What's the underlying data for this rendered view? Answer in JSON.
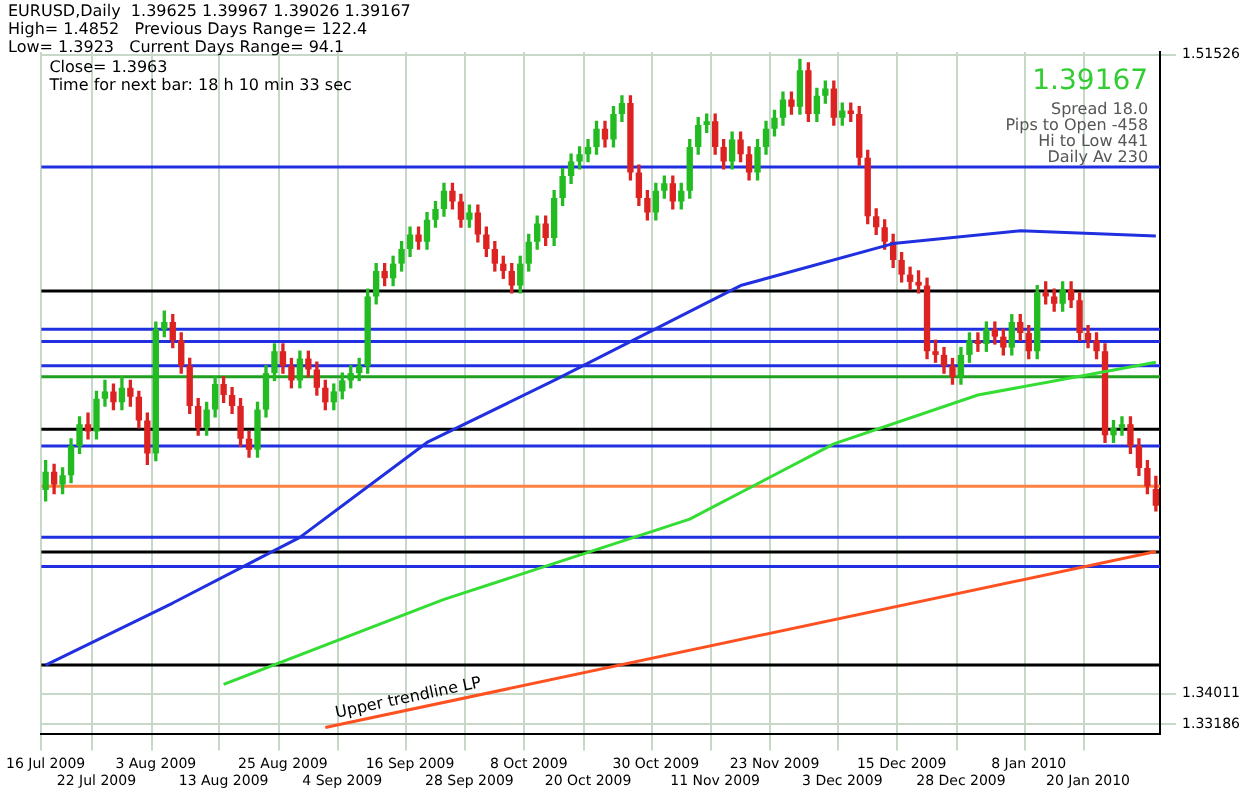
{
  "chart_data": {
    "type": "candlestick",
    "title": "EURUSD,Daily  1.39625 1.39967 1.39026 1.39167",
    "annotations": [
      "High= 1.4852   Previous Days Range= 122.4",
      "Low= 1.3923   Current Days Range= 94.1",
      "Close= 1.3963",
      "Time for next bar: 18 h 10 min 33 sec",
      "1.39167",
      "Spread 18.0",
      "Pips to Open -458",
      "Hi to Low 441",
      "Daily Av 230"
    ],
    "categories": [
      "16 Jul 2009",
      null,
      null,
      null,
      null,
      null,
      "22 Jul 2009",
      null,
      null,
      null,
      null,
      null,
      null,
      "3 Aug 2009",
      null,
      null,
      null,
      null,
      null,
      null,
      null,
      "13 Aug 2009",
      null,
      null,
      null,
      null,
      null,
      null,
      "25 Aug 2009",
      null,
      null,
      null,
      null,
      null,
      null,
      "4 Sep 2009",
      null,
      null,
      null,
      null,
      null,
      null,
      null,
      "16 Sep 2009",
      null,
      null,
      null,
      null,
      null,
      null,
      "28 Sep 2009",
      null,
      null,
      null,
      null,
      null,
      null,
      "8 Oct 2009",
      null,
      null,
      null,
      null,
      null,
      null,
      "20 Oct 2009",
      null,
      null,
      null,
      null,
      null,
      null,
      null,
      "30 Oct 2009",
      null,
      null,
      null,
      null,
      null,
      null,
      "11 Nov 2009",
      null,
      null,
      null,
      null,
      null,
      null,
      "23 Nov 2009",
      null,
      null,
      null,
      null,
      null,
      null,
      null,
      "3 Dec 2009",
      null,
      null,
      null,
      null,
      null,
      null,
      "15 Dec 2009",
      null,
      null,
      null,
      null,
      null,
      null,
      "28 Dec 2009",
      null,
      null,
      null,
      null,
      null,
      null,
      null,
      "8 Jan 2010",
      null,
      null,
      null,
      null,
      null,
      null,
      "20 Jan 2010",
      null,
      null,
      null,
      null,
      null,
      null,
      null,
      null
    ],
    "ohlc": [
      [
        1.396,
        1.404,
        1.393,
        1.401
      ],
      [
        1.401,
        1.403,
        1.395,
        1.3975
      ],
      [
        1.3975,
        1.402,
        1.395,
        1.4
      ],
      [
        1.4,
        1.41,
        1.398,
        1.408
      ],
      [
        1.408,
        1.416,
        1.406,
        1.414
      ],
      [
        1.414,
        1.417,
        1.41,
        1.412
      ],
      [
        1.412,
        1.423,
        1.41,
        1.421
      ],
      [
        1.421,
        1.426,
        1.419,
        1.423
      ],
      [
        1.423,
        1.425,
        1.418,
        1.42
      ],
      [
        1.42,
        1.427,
        1.418,
        1.424
      ],
      [
        1.424,
        1.426,
        1.419,
        1.4215
      ],
      [
        1.4215,
        1.423,
        1.413,
        1.415
      ],
      [
        1.415,
        1.417,
        1.403,
        1.406
      ],
      [
        1.406,
        1.442,
        1.404,
        1.44
      ],
      [
        1.44,
        1.445,
        1.438,
        1.442
      ],
      [
        1.442,
        1.444,
        1.435,
        1.437
      ],
      [
        1.437,
        1.439,
        1.428,
        1.43
      ],
      [
        1.43,
        1.432,
        1.417,
        1.419
      ],
      [
        1.419,
        1.421,
        1.411,
        1.413
      ],
      [
        1.413,
        1.42,
        1.411,
        1.418
      ],
      [
        1.418,
        1.427,
        1.416,
        1.425
      ],
      [
        1.425,
        1.427,
        1.42,
        1.422
      ],
      [
        1.422,
        1.424,
        1.417,
        1.419
      ],
      [
        1.419,
        1.421,
        1.408,
        1.41
      ],
      [
        1.41,
        1.412,
        1.405,
        1.407
      ],
      [
        1.407,
        1.42,
        1.405,
        1.418
      ],
      [
        1.418,
        1.43,
        1.416,
        1.428
      ],
      [
        1.428,
        1.436,
        1.426,
        1.434
      ],
      [
        1.434,
        1.436,
        1.428,
        1.43
      ],
      [
        1.43,
        1.432,
        1.424,
        1.426
      ],
      [
        1.426,
        1.434,
        1.424,
        1.432
      ],
      [
        1.432,
        1.434,
        1.427,
        1.429
      ],
      [
        1.429,
        1.431,
        1.422,
        1.424
      ],
      [
        1.424,
        1.426,
        1.418,
        1.42
      ],
      [
        1.42,
        1.425,
        1.418,
        1.423
      ],
      [
        1.423,
        1.428,
        1.421,
        1.426
      ],
      [
        1.426,
        1.43,
        1.424,
        1.428
      ],
      [
        1.428,
        1.432,
        1.426,
        1.43
      ],
      [
        1.43,
        1.451,
        1.428,
        1.449
      ],
      [
        1.449,
        1.458,
        1.447,
        1.456
      ],
      [
        1.456,
        1.458,
        1.452,
        1.454
      ],
      [
        1.454,
        1.46,
        1.452,
        1.458
      ],
      [
        1.458,
        1.464,
        1.456,
        1.462
      ],
      [
        1.462,
        1.468,
        1.46,
        1.466
      ],
      [
        1.466,
        1.468,
        1.462,
        1.464
      ],
      [
        1.464,
        1.472,
        1.462,
        1.47
      ],
      [
        1.47,
        1.475,
        1.468,
        1.473
      ],
      [
        1.473,
        1.48,
        1.471,
        1.478
      ],
      [
        1.478,
        1.48,
        1.473,
        1.475
      ],
      [
        1.475,
        1.477,
        1.468,
        1.47
      ],
      [
        1.47,
        1.474,
        1.468,
        1.472
      ],
      [
        1.472,
        1.474,
        1.464,
        1.466
      ],
      [
        1.466,
        1.468,
        1.46,
        1.462
      ],
      [
        1.462,
        1.464,
        1.456,
        1.458
      ],
      [
        1.458,
        1.46,
        1.454,
        1.456
      ],
      [
        1.456,
        1.458,
        1.45,
        1.452
      ],
      [
        1.452,
        1.46,
        1.45,
        1.458
      ],
      [
        1.458,
        1.466,
        1.456,
        1.464
      ],
      [
        1.464,
        1.471,
        1.462,
        1.469
      ],
      [
        1.469,
        1.471,
        1.463,
        1.465
      ],
      [
        1.465,
        1.478,
        1.463,
        1.476
      ],
      [
        1.476,
        1.484,
        1.474,
        1.482
      ],
      [
        1.482,
        1.488,
        1.48,
        1.486
      ],
      [
        1.486,
        1.49,
        1.484,
        1.488
      ],
      [
        1.488,
        1.492,
        1.486,
        1.49
      ],
      [
        1.49,
        1.497,
        1.488,
        1.495
      ],
      [
        1.495,
        1.497,
        1.49,
        1.492
      ],
      [
        1.492,
        1.501,
        1.49,
        1.499
      ],
      [
        1.499,
        1.504,
        1.497,
        1.502
      ],
      [
        1.502,
        1.504,
        1.481,
        1.483
      ],
      [
        1.483,
        1.485,
        1.474,
        1.476
      ],
      [
        1.476,
        1.478,
        1.47,
        1.472
      ],
      [
        1.472,
        1.48,
        1.47,
        1.478
      ],
      [
        1.478,
        1.482,
        1.476,
        1.48
      ],
      [
        1.48,
        1.482,
        1.473,
        1.475
      ],
      [
        1.475,
        1.48,
        1.473,
        1.478
      ],
      [
        1.478,
        1.492,
        1.476,
        1.49
      ],
      [
        1.49,
        1.498,
        1.488,
        1.496
      ],
      [
        1.496,
        1.499,
        1.494,
        1.497
      ],
      [
        1.497,
        1.499,
        1.488,
        1.49
      ],
      [
        1.49,
        1.492,
        1.484,
        1.486
      ],
      [
        1.486,
        1.494,
        1.484,
        1.492
      ],
      [
        1.492,
        1.494,
        1.486,
        1.488
      ],
      [
        1.488,
        1.49,
        1.481,
        1.483
      ],
      [
        1.483,
        1.492,
        1.481,
        1.49
      ],
      [
        1.49,
        1.497,
        1.488,
        1.495
      ],
      [
        1.495,
        1.5,
        1.493,
        1.498
      ],
      [
        1.498,
        1.505,
        1.496,
        1.503
      ],
      [
        1.503,
        1.505,
        1.499,
        1.501
      ],
      [
        1.501,
        1.514,
        1.499,
        1.511
      ],
      [
        1.511,
        1.513,
        1.497,
        1.499
      ],
      [
        1.499,
        1.506,
        1.497,
        1.504
      ],
      [
        1.504,
        1.508,
        1.502,
        1.506
      ],
      [
        1.506,
        1.508,
        1.496,
        1.498
      ],
      [
        1.498,
        1.502,
        1.496,
        1.5
      ],
      [
        1.5,
        1.502,
        1.497,
        1.499
      ],
      [
        1.499,
        1.501,
        1.485,
        1.487
      ],
      [
        1.487,
        1.489,
        1.469,
        1.471
      ],
      [
        1.471,
        1.473,
        1.466,
        1.468
      ],
      [
        1.468,
        1.47,
        1.462,
        1.464
      ],
      [
        1.464,
        1.466,
        1.457,
        1.459
      ],
      [
        1.459,
        1.461,
        1.453,
        1.455
      ],
      [
        1.455,
        1.457,
        1.451,
        1.453
      ],
      [
        1.453,
        1.456,
        1.45,
        1.452
      ],
      [
        1.452,
        1.454,
        1.432,
        1.434
      ],
      [
        1.434,
        1.437,
        1.431,
        1.433
      ],
      [
        1.433,
        1.435,
        1.428,
        1.43
      ],
      [
        1.43,
        1.432,
        1.425,
        1.427
      ],
      [
        1.427,
        1.435,
        1.425,
        1.433
      ],
      [
        1.433,
        1.439,
        1.431,
        1.437
      ],
      [
        1.437,
        1.439,
        1.434,
        1.436
      ],
      [
        1.436,
        1.442,
        1.434,
        1.44
      ],
      [
        1.44,
        1.442,
        1.436,
        1.438
      ],
      [
        1.438,
        1.44,
        1.433,
        1.435
      ],
      [
        1.435,
        1.444,
        1.433,
        1.442
      ],
      [
        1.442,
        1.444,
        1.437,
        1.439
      ],
      [
        1.439,
        1.441,
        1.432,
        1.434
      ],
      [
        1.434,
        1.452,
        1.432,
        1.45
      ],
      [
        1.45,
        1.453,
        1.447,
        1.449
      ],
      [
        1.449,
        1.451,
        1.445,
        1.447
      ],
      [
        1.447,
        1.453,
        1.445,
        1.451
      ],
      [
        1.451,
        1.453,
        1.446,
        1.448
      ],
      [
        1.448,
        1.45,
        1.437,
        1.439
      ],
      [
        1.439,
        1.441,
        1.435,
        1.437
      ],
      [
        1.437,
        1.439,
        1.432,
        1.434
      ],
      [
        1.434,
        1.436,
        1.409,
        1.411
      ],
      [
        1.411,
        1.415,
        1.409,
        1.413
      ],
      [
        1.413,
        1.416,
        1.411,
        1.414
      ],
      [
        1.414,
        1.416,
        1.406,
        1.408
      ],
      [
        1.408,
        1.41,
        1.4,
        1.402
      ],
      [
        1.402,
        1.404,
        1.395,
        1.397
      ],
      [
        1.39625,
        1.39967,
        1.39026,
        1.39167
      ]
    ],
    "colors": [
      "#22bb22",
      "#dd2222",
      "#22bb22",
      "#22bb22",
      "#22bb22",
      "#dd2222",
      "#22bb22",
      "#22bb22",
      "#dd2222",
      "#22bb22",
      "#dd2222",
      "#dd2222",
      "#dd2222",
      "#22bb22",
      "#22bb22",
      "#dd2222",
      "#dd2222",
      "#dd2222",
      "#dd2222",
      "#22bb22",
      "#22bb22",
      "#dd2222",
      "#dd2222",
      "#dd2222",
      "#dd2222",
      "#22bb22",
      "#22bb22",
      "#22bb22",
      "#dd2222",
      "#dd2222",
      "#22bb22",
      "#dd2222",
      "#dd2222",
      "#dd2222",
      "#22bb22",
      "#22bb22",
      "#22bb22",
      "#22bb22",
      "#22bb22",
      "#22bb22",
      "#dd2222",
      "#22bb22",
      "#22bb22",
      "#22bb22",
      "#dd2222",
      "#22bb22",
      "#22bb22",
      "#22bb22",
      "#dd2222",
      "#dd2222",
      "#22bb22",
      "#dd2222",
      "#dd2222",
      "#dd2222",
      "#dd2222",
      "#dd2222",
      "#22bb22",
      "#22bb22",
      "#22bb22",
      "#dd2222",
      "#22bb22",
      "#22bb22",
      "#22bb22",
      "#22bb22",
      "#22bb22",
      "#22bb22",
      "#dd2222",
      "#22bb22",
      "#22bb22",
      "#dd2222",
      "#dd2222",
      "#dd2222",
      "#22bb22",
      "#22bb22",
      "#dd2222",
      "#22bb22",
      "#22bb22",
      "#22bb22",
      "#22bb22",
      "#dd2222",
      "#dd2222",
      "#22bb22",
      "#dd2222",
      "#dd2222",
      "#22bb22",
      "#22bb22",
      "#22bb22",
      "#22bb22",
      "#dd2222",
      "#22bb22",
      "#dd2222",
      "#22bb22",
      "#22bb22",
      "#dd2222",
      "#22bb22",
      "#dd2222",
      "#dd2222",
      "#dd2222",
      "#dd2222",
      "#dd2222",
      "#dd2222",
      "#dd2222",
      "#dd2222",
      "#dd2222",
      "#dd2222",
      "#dd2222",
      "#dd2222",
      "#dd2222",
      "#22bb22",
      "#22bb22",
      "#dd2222",
      "#22bb22",
      "#dd2222",
      "#dd2222",
      "#22bb22",
      "#dd2222",
      "#dd2222",
      "#22bb22",
      "#dd2222",
      "#dd2222",
      "#22bb22",
      "#dd2222",
      "#dd2222",
      "#dd2222",
      "#dd2222",
      "#dd2222",
      "#22bb22",
      "#22bb22",
      "#dd2222",
      "#dd2222",
      "#dd2222",
      "#dd2222"
    ],
    "series": [
      {
        "type": "line",
        "color": "#2030e0",
        "values": [
          1.348,
          null,
          null,
          null,
          null,
          null,
          null,
          null,
          null,
          null,
          null,
          null,
          null,
          null,
          null,
          1.365,
          null,
          null,
          null,
          null,
          null,
          null,
          null,
          null,
          null,
          null,
          null,
          null,
          null,
          null,
          1.383,
          null,
          null,
          null,
          null,
          null,
          null,
          null,
          null,
          null,
          null,
          null,
          null,
          null,
          null,
          1.409,
          null,
          null,
          null,
          null,
          null,
          null,
          null,
          null,
          null,
          null,
          null,
          null,
          null,
          null,
          1.426,
          null,
          null,
          null,
          null,
          null,
          null,
          null,
          null,
          null,
          null,
          null,
          null,
          null,
          null,
          null,
          null,
          null,
          null,
          null,
          null,
          null,
          1.452,
          null,
          null,
          null,
          null,
          null,
          null,
          null,
          null,
          null,
          null,
          null,
          null,
          null,
          null,
          null,
          null,
          null,
          1.4635,
          null,
          null,
          null,
          null,
          null,
          null,
          null,
          null,
          null,
          null,
          null,
          null,
          null,
          null,
          1.467,
          null,
          null,
          null,
          null,
          null,
          null,
          null,
          null,
          null,
          null,
          null,
          null,
          null,
          null,
          null,
          1.4656
        ]
      },
      {
        "type": "line",
        "color": "#33dd33",
        "values": [
          null,
          null,
          null,
          null,
          null,
          null,
          null,
          null,
          null,
          null,
          null,
          null,
          null,
          null,
          null,
          null,
          null,
          null,
          null,
          null,
          null,
          1.3427,
          null,
          null,
          null,
          null,
          null,
          null,
          null,
          null,
          null,
          null,
          null,
          null,
          null,
          null,
          null,
          null,
          null,
          null,
          null,
          null,
          null,
          null,
          null,
          null,
          null,
          1.366,
          null,
          null,
          null,
          null,
          null,
          null,
          null,
          null,
          null,
          null,
          null,
          null,
          null,
          null,
          null,
          null,
          null,
          null,
          null,
          null,
          null,
          null,
          null,
          null,
          null,
          null,
          null,
          null,
          1.388,
          null,
          null,
          null,
          null,
          null,
          null,
          null,
          null,
          null,
          null,
          null,
          null,
          null,
          null,
          null,
          null,
          1.4086,
          null,
          null,
          null,
          null,
          null,
          null,
          null,
          null,
          null,
          null,
          null,
          null,
          null,
          null,
          null,
          null,
          1.422,
          null,
          null,
          null,
          null,
          null,
          null,
          null,
          null,
          null,
          null,
          null,
          null,
          null,
          null,
          null,
          null,
          null,
          null,
          null,
          null,
          1.431
        ]
      },
      {
        "type": "line",
        "name": "Upper trendline LP",
        "color": "#ff5020",
        "values": [
          null,
          null,
          null,
          null,
          null,
          null,
          null,
          null,
          null,
          null,
          null,
          null,
          null,
          null,
          null,
          null,
          null,
          null,
          null,
          null,
          null,
          null,
          null,
          null,
          null,
          null,
          null,
          null,
          null,
          null,
          null,
          null,
          null,
          1.3309,
          null,
          null,
          null,
          null,
          null,
          null,
          null,
          null,
          null,
          null,
          null,
          null,
          null,
          null,
          null,
          null,
          null,
          null,
          null,
          null,
          null,
          null,
          null,
          null,
          null,
          null,
          null,
          null,
          null,
          null,
          null,
          null,
          null,
          null,
          null,
          null,
          null,
          null,
          null,
          null,
          null,
          null,
          null,
          null,
          null,
          null,
          null,
          null,
          null,
          null,
          null,
          null,
          null,
          null,
          null,
          null,
          null,
          null,
          null,
          null,
          null,
          null,
          null,
          null,
          null,
          null,
          null,
          null,
          null,
          null,
          null,
          null,
          null,
          null,
          null,
          null,
          null,
          null,
          null,
          null,
          null,
          null,
          null,
          null,
          null,
          null,
          null,
          null,
          null,
          null,
          null,
          null,
          null,
          null,
          null,
          null,
          null,
          1.3791
        ]
      }
    ],
    "ref_lines": [
      {
        "axis": "y",
        "value": 1.4845,
        "color": "#2030e0"
      },
      {
        "axis": "y",
        "value": 1.4505,
        "color": "#000000"
      },
      {
        "axis": "y",
        "value": 1.44,
        "color": "#2030e0"
      },
      {
        "axis": "y",
        "value": 1.4367,
        "color": "#2030e0"
      },
      {
        "axis": "y",
        "value": 1.43,
        "color": "#2030e0"
      },
      {
        "axis": "y",
        "value": 1.427,
        "color": "#20a020"
      },
      {
        "axis": "y",
        "value": 1.4126,
        "color": "#000000"
      },
      {
        "axis": "y",
        "value": 1.408,
        "color": "#2030e0"
      },
      {
        "axis": "y",
        "value": 1.397,
        "color": "#ff8040"
      },
      {
        "axis": "y",
        "value": 1.383,
        "color": "#2030e0"
      },
      {
        "axis": "y",
        "value": 1.379,
        "color": "#000000"
      },
      {
        "axis": "y",
        "value": 1.375,
        "color": "#2030e0"
      },
      {
        "axis": "y",
        "value": 1.348,
        "color": "#000000"
      }
    ],
    "ylim": [
      1.329,
      1.516
    ],
    "yticks": [
      1.33186,
      1.34011,
      1.51526
    ],
    "grid": true
  }
}
